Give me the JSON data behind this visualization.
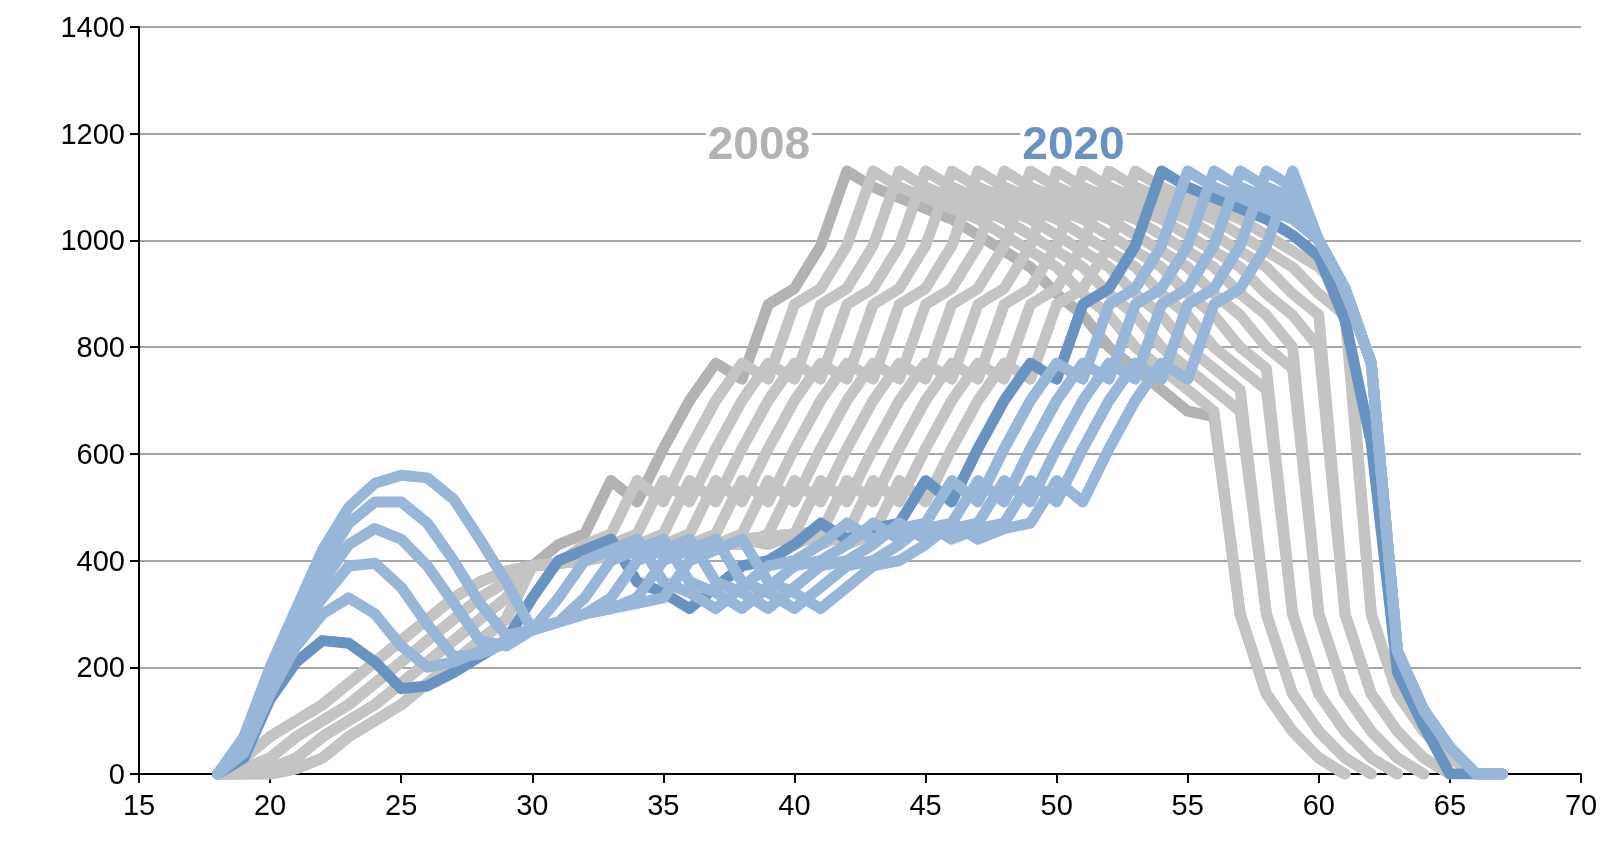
{
  "chart_data": {
    "type": "line",
    "x": [
      18,
      19,
      20,
      21,
      22,
      23,
      24,
      25,
      26,
      27,
      28,
      29,
      30,
      31,
      32,
      33,
      34,
      35,
      36,
      37,
      38,
      39,
      40,
      41,
      42,
      43,
      44,
      45,
      46,
      47,
      48,
      49,
      50,
      51,
      52,
      53,
      54,
      55,
      56,
      57,
      58,
      59,
      60,
      61,
      62,
      63,
      64,
      65,
      66,
      67
    ],
    "xlim": [
      15,
      70
    ],
    "xticks": [
      15,
      20,
      25,
      30,
      35,
      40,
      45,
      50,
      55,
      60,
      65,
      70
    ],
    "ylim": [
      0,
      1400
    ],
    "yticks": [
      0,
      200,
      400,
      600,
      800,
      1000,
      1200,
      1400
    ],
    "grid": "y",
    "line_style": "solid",
    "series": [
      {
        "name": "2008",
        "color": "#b2b2b2",
        "values": [
          0,
          0,
          0,
          10,
          30,
          70,
          100,
          130,
          170,
          210,
          250,
          290,
          390,
          430,
          450,
          550,
          510,
          610,
          700,
          770,
          740,
          880,
          910,
          990,
          1130,
          1100,
          1080,
          1060,
          1040,
          1010,
          980,
          950,
          900,
          860,
          800,
          760,
          720,
          680,
          670,
          300,
          150,
          80,
          30,
          0,
          null,
          null,
          null,
          null,
          null,
          null
        ]
      },
      {
        "color": "#c4c4c4",
        "values": [
          0,
          0,
          0,
          10,
          30,
          70,
          100,
          130,
          170,
          210,
          250,
          290,
          390,
          395,
          430,
          450,
          550,
          510,
          610,
          700,
          770,
          740,
          880,
          910,
          990,
          1130,
          1100,
          1080,
          1060,
          1040,
          1010,
          980,
          950,
          900,
          860,
          800,
          760,
          720,
          680,
          300,
          150,
          80,
          30,
          0,
          null,
          null,
          null,
          null,
          null,
          null
        ]
      },
      {
        "color": "#c4c4c4",
        "values": [
          0,
          0,
          0,
          10,
          30,
          70,
          100,
          130,
          170,
          210,
          250,
          290,
          390,
          395,
          400,
          430,
          450,
          550,
          510,
          610,
          700,
          770,
          740,
          880,
          910,
          990,
          1130,
          1100,
          1080,
          1060,
          1040,
          1010,
          980,
          950,
          900,
          860,
          800,
          760,
          720,
          680,
          300,
          150,
          80,
          30,
          0,
          null,
          null,
          null,
          null,
          null
        ]
      },
      {
        "color": "#c4c4c4",
        "values": [
          0,
          0,
          10,
          30,
          70,
          100,
          130,
          170,
          210,
          250,
          290,
          330,
          390,
          395,
          400,
          410,
          430,
          450,
          550,
          510,
          610,
          700,
          770,
          740,
          880,
          910,
          990,
          1130,
          1100,
          1080,
          1060,
          1040,
          1010,
          980,
          950,
          900,
          860,
          800,
          760,
          720,
          300,
          150,
          80,
          30,
          0,
          null,
          null,
          null,
          null,
          null
        ]
      },
      {
        "color": "#c4c4c4",
        "values": [
          0,
          0,
          10,
          30,
          70,
          100,
          130,
          170,
          210,
          250,
          290,
          330,
          390,
          395,
          400,
          410,
          415,
          430,
          450,
          550,
          510,
          610,
          700,
          770,
          740,
          880,
          910,
          990,
          1130,
          1100,
          1080,
          1060,
          1040,
          1010,
          980,
          950,
          900,
          860,
          800,
          760,
          720,
          300,
          150,
          80,
          30,
          0,
          null,
          null,
          null,
          null
        ]
      },
      {
        "color": "#c4c4c4",
        "values": [
          0,
          0,
          10,
          30,
          70,
          100,
          130,
          170,
          210,
          250,
          290,
          330,
          390,
          395,
          400,
          410,
          415,
          420,
          430,
          450,
          550,
          510,
          610,
          700,
          770,
          740,
          880,
          910,
          990,
          1130,
          1100,
          1080,
          1060,
          1040,
          1010,
          980,
          950,
          900,
          860,
          800,
          760,
          300,
          150,
          80,
          30,
          0,
          null,
          null,
          null,
          null
        ]
      },
      {
        "color": "#c4c4c4",
        "values": [
          0,
          10,
          30,
          70,
          100,
          130,
          170,
          210,
          250,
          290,
          330,
          360,
          390,
          395,
          400,
          410,
          415,
          420,
          425,
          430,
          450,
          550,
          510,
          610,
          700,
          770,
          740,
          880,
          910,
          990,
          1130,
          1100,
          1080,
          1060,
          1040,
          1010,
          980,
          950,
          900,
          860,
          800,
          760,
          300,
          150,
          80,
          30,
          0,
          null,
          null,
          null
        ]
      },
      {
        "color": "#c4c4c4",
        "values": [
          0,
          10,
          30,
          70,
          100,
          130,
          170,
          210,
          250,
          290,
          330,
          360,
          390,
          395,
          400,
          410,
          415,
          420,
          425,
          430,
          430,
          450,
          550,
          510,
          610,
          700,
          770,
          740,
          880,
          910,
          990,
          1130,
          1100,
          1080,
          1060,
          1040,
          1010,
          980,
          950,
          900,
          860,
          800,
          300,
          150,
          80,
          30,
          0,
          null,
          null,
          null
        ]
      },
      {
        "color": "#c4c4c4",
        "values": [
          0,
          10,
          30,
          70,
          100,
          130,
          170,
          210,
          250,
          290,
          330,
          360,
          390,
          395,
          400,
          410,
          415,
          420,
          425,
          430,
          440,
          430,
          450,
          550,
          510,
          610,
          700,
          770,
          740,
          880,
          910,
          990,
          1130,
          1100,
          1080,
          1060,
          1040,
          1010,
          980,
          950,
          900,
          860,
          800,
          300,
          150,
          80,
          30,
          0,
          null,
          null
        ]
      },
      {
        "color": "#c4c4c4",
        "values": [
          0,
          30,
          70,
          100,
          130,
          170,
          210,
          250,
          290,
          330,
          360,
          380,
          390,
          395,
          400,
          410,
          415,
          420,
          425,
          430,
          440,
          445,
          430,
          450,
          550,
          510,
          610,
          700,
          770,
          740,
          880,
          910,
          990,
          1130,
          1100,
          1080,
          1060,
          1040,
          1010,
          980,
          950,
          900,
          860,
          300,
          150,
          80,
          30,
          0,
          null,
          null
        ]
      },
      {
        "color": "#c4c4c4",
        "values": [
          0,
          30,
          70,
          100,
          130,
          170,
          210,
          250,
          290,
          330,
          360,
          380,
          390,
          395,
          400,
          410,
          415,
          420,
          425,
          430,
          440,
          445,
          450,
          430,
          450,
          550,
          510,
          610,
          700,
          770,
          740,
          880,
          910,
          990,
          1130,
          1100,
          1080,
          1060,
          1040,
          1010,
          980,
          950,
          900,
          860,
          300,
          150,
          80,
          30,
          0,
          null
        ]
      },
      {
        "color": "#c4c4c4",
        "values": [
          0,
          30,
          70,
          100,
          130,
          170,
          210,
          250,
          290,
          330,
          360,
          380,
          390,
          395,
          400,
          410,
          415,
          420,
          425,
          430,
          440,
          445,
          450,
          455,
          430,
          450,
          550,
          510,
          610,
          700,
          770,
          740,
          880,
          910,
          990,
          1130,
          1100,
          1080,
          1060,
          1040,
          1010,
          980,
          950,
          900,
          300,
          150,
          80,
          30,
          0,
          null
        ]
      },
      {
        "name": "2020",
        "color": "#6893c1",
        "values": [
          0,
          30,
          140,
          210,
          250,
          245,
          210,
          160,
          165,
          190,
          220,
          250,
          330,
          400,
          420,
          440,
          360,
          340,
          310,
          350,
          390,
          400,
          430,
          470,
          440,
          460,
          470,
          550,
          510,
          610,
          700,
          770,
          740,
          880,
          910,
          990,
          1130,
          1100,
          1080,
          1060,
          1040,
          1010,
          970,
          850,
          620,
          190,
          90,
          0,
          0,
          0
        ]
      },
      {
        "color": "#98b6d7",
        "values": [
          0,
          40,
          150,
          240,
          300,
          330,
          300,
          240,
          200,
          210,
          230,
          250,
          270,
          330,
          400,
          420,
          440,
          360,
          340,
          310,
          350,
          390,
          400,
          430,
          470,
          440,
          460,
          470,
          550,
          510,
          610,
          700,
          770,
          740,
          880,
          910,
          990,
          1130,
          1100,
          1080,
          1060,
          1040,
          1000,
          910,
          770,
          230,
          120,
          50,
          0,
          0
        ]
      },
      {
        "color": "#98b6d7",
        "values": [
          0,
          45,
          160,
          260,
          330,
          390,
          395,
          350,
          280,
          220,
          225,
          245,
          270,
          285,
          330,
          400,
          420,
          440,
          360,
          340,
          310,
          350,
          390,
          400,
          430,
          470,
          440,
          460,
          470,
          550,
          510,
          610,
          700,
          770,
          740,
          880,
          910,
          990,
          1130,
          1100,
          1080,
          1060,
          1000,
          910,
          770,
          230,
          120,
          50,
          0,
          0
        ]
      },
      {
        "color": "#98b6d7",
        "values": [
          0,
          50,
          170,
          280,
          360,
          430,
          460,
          440,
          390,
          320,
          250,
          240,
          270,
          285,
          300,
          330,
          400,
          420,
          440,
          360,
          340,
          310,
          350,
          390,
          400,
          430,
          470,
          440,
          460,
          470,
          550,
          510,
          610,
          700,
          770,
          740,
          880,
          910,
          990,
          1130,
          1100,
          1080,
          1000,
          910,
          770,
          230,
          120,
          50,
          0,
          0
        ]
      },
      {
        "color": "#98b6d7",
        "values": [
          0,
          60,
          190,
          300,
          390,
          470,
          510,
          510,
          470,
          400,
          320,
          260,
          270,
          285,
          300,
          310,
          330,
          400,
          420,
          440,
          360,
          340,
          310,
          350,
          390,
          400,
          430,
          470,
          440,
          460,
          470,
          550,
          510,
          610,
          700,
          770,
          740,
          880,
          910,
          990,
          1130,
          1100,
          1000,
          910,
          770,
          230,
          120,
          50,
          0,
          0
        ]
      },
      {
        "color": "#98b6d7",
        "values": [
          0,
          70,
          200,
          310,
          420,
          500,
          545,
          560,
          555,
          515,
          440,
          360,
          270,
          285,
          300,
          310,
          320,
          330,
          400,
          420,
          440,
          360,
          340,
          310,
          350,
          390,
          400,
          430,
          470,
          440,
          460,
          470,
          550,
          510,
          610,
          700,
          770,
          740,
          880,
          910,
          990,
          1130,
          1000,
          910,
          770,
          230,
          120,
          50,
          0,
          0
        ]
      }
    ]
  }
}
